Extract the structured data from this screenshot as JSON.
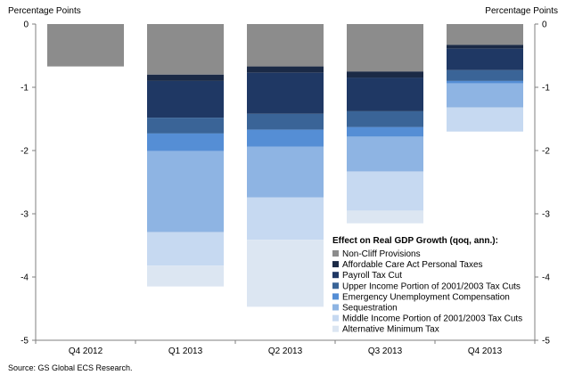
{
  "chart_data": {
    "type": "bar",
    "stacked": true,
    "orientation": "vertical",
    "y_left_label": "Percentage Points",
    "y_right_label": "Percentage Points",
    "ylim": [
      -5,
      0
    ],
    "yticks": [
      "0",
      "-1",
      "-2",
      "-3",
      "-4",
      "-5"
    ],
    "yticks_values": [
      0,
      -1,
      -2,
      -3,
      -4,
      -5
    ],
    "grid": false,
    "categories": [
      "Q4 2012",
      "Q1 2013",
      "Q2 2013",
      "Q3 2013",
      "Q4 2013"
    ],
    "series": [
      {
        "name": "Non-Cliff Provisions",
        "color": "#8c8c8c",
        "values": [
          -0.67,
          -0.8,
          -0.67,
          -0.75,
          -0.33
        ]
      },
      {
        "name": "Affordable Care Act Personal Taxes",
        "color": "#1b2a46",
        "values": [
          0,
          -0.1,
          -0.1,
          -0.1,
          -0.06
        ]
      },
      {
        "name": "Payroll Tax Cut",
        "color": "#1f3864",
        "values": [
          0,
          -0.58,
          -0.65,
          -0.53,
          -0.34
        ]
      },
      {
        "name": "Upper Income Portion of 2001/2003 Tax Cuts",
        "color": "#3a6497",
        "values": [
          0,
          -0.25,
          -0.25,
          -0.25,
          -0.17
        ]
      },
      {
        "name": "Emergency Unemployment Compensation",
        "color": "#558ed5",
        "values": [
          0,
          -0.28,
          -0.27,
          -0.15,
          -0.04
        ]
      },
      {
        "name": "Sequestration",
        "color": "#8eb4e3",
        "values": [
          0,
          -1.28,
          -0.8,
          -0.55,
          -0.38
        ]
      },
      {
        "name": "Middle Income Portion of 2001/2003 Tax Cuts",
        "color": "#c6d9f1",
        "values": [
          0,
          -0.53,
          -0.67,
          -0.62,
          -0.38
        ]
      },
      {
        "name": "Alternative Minimum Tax",
        "color": "#dce6f2",
        "values": [
          0,
          -0.33,
          -1.06,
          -0.2,
          0
        ]
      }
    ],
    "legend_title": "Effect on Real GDP Growth  (qoq, ann.):",
    "legend_position": "bottom-right"
  },
  "footer": {
    "source": "Source: GS Global ECS Research."
  }
}
